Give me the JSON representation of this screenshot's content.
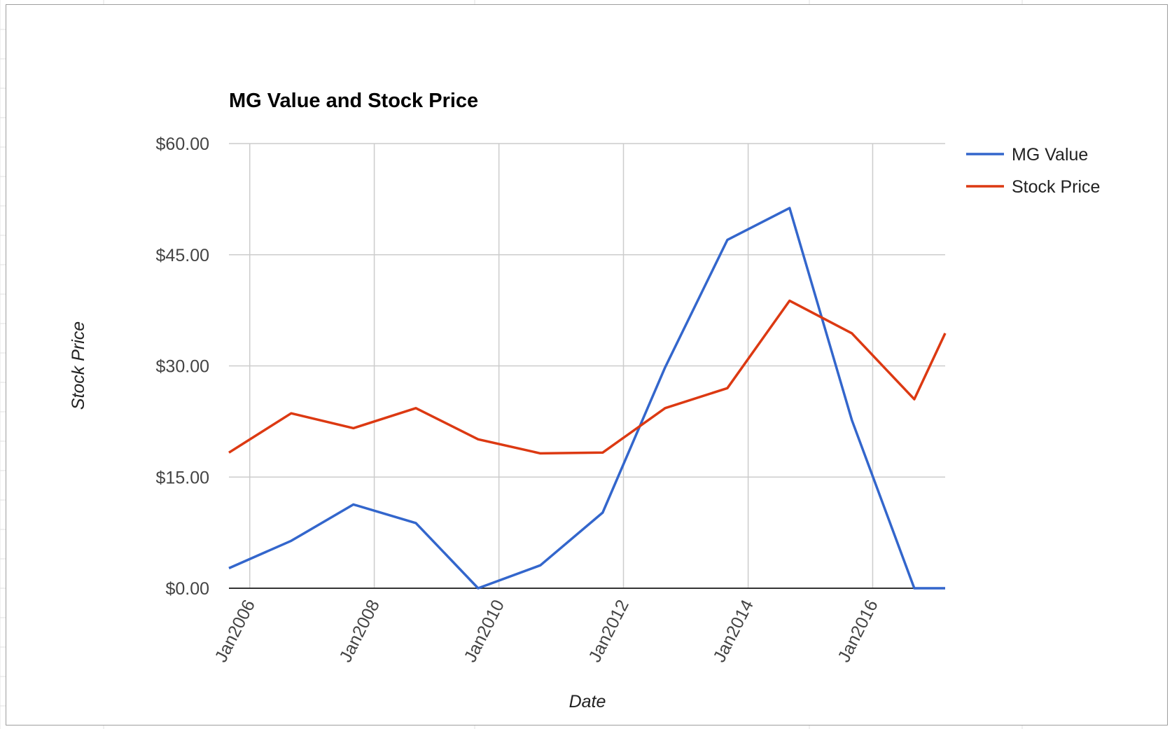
{
  "colors": {
    "mg_value": "#3366cc",
    "stock_price": "#dc3912",
    "gridline": "#cccccc",
    "baseline": "#333333",
    "frame": "#9e9e9e",
    "sheet_gridline": "#e2e2e2"
  },
  "chart_data": {
    "type": "line",
    "title": "MG Value and Stock Price",
    "xlabel": "Date",
    "ylabel": "Stock Price",
    "xlim": [
      "2005-09-01",
      "2017-03-01"
    ],
    "ylim": [
      0,
      60
    ],
    "x_ticks": [
      "Jan2006",
      "Jan2008",
      "Jan2010",
      "Jan2012",
      "Jan2014",
      "Jan2016"
    ],
    "y_ticks": [
      "$0.00",
      "$15.00",
      "$30.00",
      "$45.00",
      "$60.00"
    ],
    "grid": true,
    "legend_position": "right",
    "series": [
      {
        "name": "MG Value",
        "points": [
          {
            "x": "2005-09-01",
            "y": 2.7
          },
          {
            "x": "2006-09-01",
            "y": 6.4
          },
          {
            "x": "2007-09-01",
            "y": 11.3
          },
          {
            "x": "2008-09-01",
            "y": 8.8
          },
          {
            "x": "2009-09-01",
            "y": 0.0
          },
          {
            "x": "2010-09-01",
            "y": 3.1
          },
          {
            "x": "2011-09-01",
            "y": 10.2
          },
          {
            "x": "2012-09-01",
            "y": 29.8
          },
          {
            "x": "2013-09-01",
            "y": 47.0
          },
          {
            "x": "2014-09-01",
            "y": 51.3
          },
          {
            "x": "2015-09-01",
            "y": 22.7
          },
          {
            "x": "2016-09-01",
            "y": 0.0
          },
          {
            "x": "2017-03-01",
            "y": 0.0
          }
        ]
      },
      {
        "name": "Stock Price",
        "points": [
          {
            "x": "2005-09-01",
            "y": 18.3
          },
          {
            "x": "2006-09-01",
            "y": 23.6
          },
          {
            "x": "2007-09-01",
            "y": 21.6
          },
          {
            "x": "2008-09-01",
            "y": 24.3
          },
          {
            "x": "2009-09-01",
            "y": 20.1
          },
          {
            "x": "2010-09-01",
            "y": 18.2
          },
          {
            "x": "2011-09-01",
            "y": 18.3
          },
          {
            "x": "2012-09-01",
            "y": 24.3
          },
          {
            "x": "2013-09-01",
            "y": 27.0
          },
          {
            "x": "2014-09-01",
            "y": 38.8
          },
          {
            "x": "2015-09-01",
            "y": 34.4
          },
          {
            "x": "2016-09-01",
            "y": 25.5
          },
          {
            "x": "2017-03-01",
            "y": 34.4
          }
        ]
      }
    ]
  }
}
